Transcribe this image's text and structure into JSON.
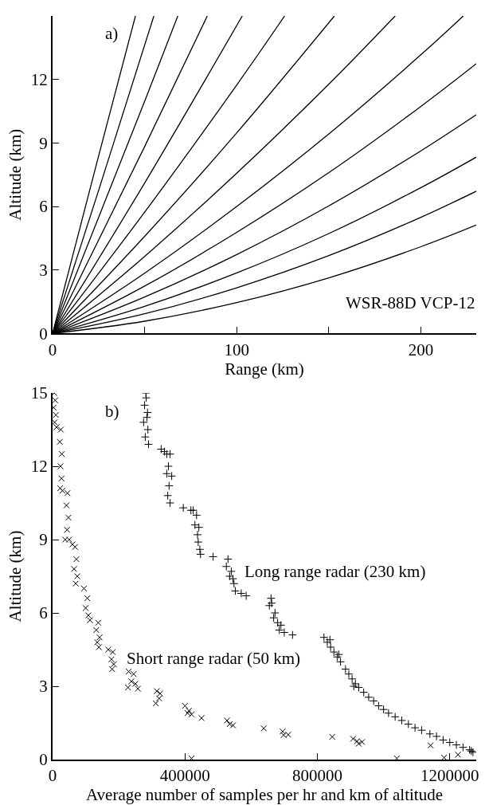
{
  "chart_data": [
    {
      "type": "line",
      "xlabel": "Range (km)",
      "ylabel": "Altitude (km)",
      "annotations": [
        "a)",
        "WSR-88D VCP-12"
      ],
      "xlim": [
        0,
        230
      ],
      "ylim": [
        0,
        15
      ],
      "xticks": [
        0,
        {
          "value": 50,
          "label": null
        },
        100,
        {
          "value": 150,
          "label": null
        },
        200
      ],
      "yticks": [
        0,
        3,
        6,
        9,
        12
      ],
      "legend": false,
      "marker": "none",
      "line_style": "solid",
      "series": [
        {
          "color": "#000000",
          "x": [
            0,
            50,
            100,
            150,
            200,
            230
          ],
          "values": [
            0,
            0.58,
            1.46,
            2.63,
            4.1,
            5.12
          ]
        },
        {
          "color": "#000000",
          "x": [
            0,
            50,
            100,
            150,
            200,
            230
          ],
          "values": [
            0,
            0.93,
            2.16,
            3.68,
            5.49,
            6.72
          ]
        },
        {
          "color": "#000000",
          "x": [
            0,
            50,
            100,
            150,
            200,
            230
          ],
          "values": [
            0,
            1.28,
            2.86,
            4.72,
            6.89,
            8.33
          ]
        },
        {
          "color": "#000000",
          "x": [
            0,
            50,
            100,
            150,
            200,
            230
          ],
          "values": [
            0,
            1.72,
            3.73,
            6.03,
            8.63,
            10.33
          ]
        },
        {
          "color": "#000000",
          "x": [
            0,
            50,
            100,
            150,
            200,
            230
          ],
          "values": [
            0,
            2.24,
            4.78,
            7.6,
            10.73,
            12.74
          ]
        },
        {
          "color": "#000000",
          "x": [
            0,
            50,
            100,
            150,
            200,
            223
          ],
          "values": [
            0,
            2.85,
            6.0,
            9.43,
            13.17,
            15
          ]
        },
        {
          "color": "#000000",
          "x": [
            0,
            50,
            100,
            150,
            186
          ],
          "values": [
            0,
            3.64,
            7.57,
            11.78,
            15
          ]
        },
        {
          "color": "#000000",
          "x": [
            0,
            50,
            100,
            153
          ],
          "values": [
            0,
            4.59,
            9.48,
            15
          ]
        },
        {
          "color": "#000000",
          "x": [
            0,
            50,
            100,
            126
          ],
          "values": [
            0,
            5.73,
            11.74,
            15
          ]
        },
        {
          "color": "#000000",
          "x": [
            0,
            50,
            103
          ],
          "values": [
            0,
            7.11,
            15
          ]
        },
        {
          "color": "#000000",
          "x": [
            0,
            50,
            84
          ],
          "values": [
            0,
            8.83,
            15
          ]
        },
        {
          "color": "#000000",
          "x": [
            0,
            50,
            68
          ],
          "values": [
            0,
            10.97,
            15
          ]
        },
        {
          "color": "#000000",
          "x": [
            0,
            25,
            55
          ],
          "values": [
            0,
            6.76,
            15
          ]
        },
        {
          "color": "#000000",
          "x": [
            0,
            25,
            45
          ],
          "values": [
            0,
            8.39,
            15
          ]
        }
      ]
    },
    {
      "type": "scatter",
      "xlabel": "Average number of samples per hr and km of altitude",
      "ylabel": "Altitude (km)",
      "annotations": [
        "b)"
      ],
      "xlim": [
        0,
        1280000
      ],
      "ylim": [
        0,
        15
      ],
      "xticks": [
        0,
        400000,
        800000,
        1200000
      ],
      "yticks": [
        0,
        3,
        6,
        9,
        12,
        15
      ],
      "legend": false,
      "series": [
        {
          "name": "Long range radar (230 km)",
          "color": "#000000",
          "marker": "cross",
          "x": [
            282000,
            278000,
            285000,
            275000,
            288000,
            280000,
            290000,
            283000,
            287000,
            328000,
            345000,
            355000,
            350000,
            345000,
            360000,
            352000,
            348000,
            355000,
            338000,
            395000,
            418000,
            425000,
            435000,
            430000,
            438000,
            440000,
            445000,
            447000,
            442000,
            485000,
            530000,
            525000,
            540000,
            535000,
            548000,
            552000,
            570000,
            585000,
            545000,
            660000,
            655000,
            672000,
            668000,
            680000,
            685000,
            700000,
            725000,
            662000,
            690000,
            820000,
            830000,
            840000,
            850000,
            860000,
            870000,
            885000,
            895000,
            905000,
            915000,
            925000,
            940000,
            955000,
            970000,
            985000,
            1000000,
            1015000,
            1035000,
            1055000,
            1075000,
            1095000,
            1115000,
            1140000,
            1160000,
            1180000,
            1200000,
            1220000,
            1240000,
            1260000,
            1270000,
            1265000,
            838000,
            865000,
            910000
          ],
          "values": [
            15,
            14.5,
            14,
            13.8,
            13.5,
            13.2,
            12.9,
            14.8,
            14.2,
            12.7,
            12.5,
            12.5,
            12.0,
            11.7,
            11.6,
            11.2,
            10.8,
            10.5,
            12.6,
            10.3,
            10.2,
            10.2,
            10.0,
            9.6,
            9.2,
            8.9,
            8.6,
            8.4,
            9.5,
            8.3,
            8.2,
            7.9,
            7.7,
            7.5,
            7.2,
            6.9,
            6.8,
            6.7,
            7.4,
            6.6,
            6.3,
            6.0,
            5.8,
            5.6,
            5.3,
            5.2,
            5.1,
            6.4,
            5.5,
            5.0,
            4.8,
            4.6,
            4.4,
            4.2,
            4.0,
            3.7,
            3.5,
            3.3,
            3.1,
            2.95,
            2.75,
            2.55,
            2.4,
            2.2,
            2.05,
            1.9,
            1.75,
            1.6,
            1.45,
            1.3,
            1.2,
            1.05,
            0.95,
            0.8,
            0.7,
            0.6,
            0.5,
            0.4,
            0.3,
            0.35,
            4.9,
            4.3,
            3.0
          ]
        },
        {
          "name": "Short range radar (50 km)",
          "color": "#000000",
          "marker": "x",
          "x": [
            5000,
            8000,
            3000,
            10000,
            6000,
            12000,
            25000,
            22000,
            28000,
            24000,
            27000,
            23000,
            30000,
            45000,
            42000,
            48000,
            44000,
            50000,
            38000,
            60000,
            68000,
            72000,
            65000,
            75000,
            70000,
            95000,
            105000,
            100000,
            108000,
            113000,
            138000,
            132000,
            142000,
            135000,
            140000,
            168000,
            182000,
            178000,
            185000,
            180000,
            230000,
            245000,
            238000,
            250000,
            228000,
            258000,
            315000,
            322000,
            312000,
            325000,
            400000,
            412000,
            420000,
            408000,
            450000,
            527000,
            535000,
            545000,
            638000,
            695000,
            698000,
            712000,
            845000,
            908000,
            920000,
            935000,
            925000,
            1142000,
            420000,
            1040000,
            1183000,
            1225000
          ],
          "values": [
            15,
            14.7,
            14.4,
            14.1,
            13.8,
            13.6,
            13.5,
            13.0,
            12.5,
            12.0,
            11.5,
            11.1,
            11.0,
            10.9,
            10.4,
            9.9,
            9.4,
            9.0,
            9.0,
            8.8,
            8.7,
            8.2,
            7.8,
            7.5,
            7.2,
            7.0,
            6.6,
            6.2,
            5.9,
            5.7,
            5.6,
            5.3,
            5.0,
            4.8,
            4.6,
            4.5,
            4.4,
            4.1,
            3.9,
            3.7,
            3.6,
            3.5,
            3.2,
            3.1,
            2.95,
            2.9,
            2.8,
            2.5,
            2.3,
            2.7,
            2.2,
            2.0,
            1.85,
            1.9,
            1.7,
            1.6,
            1.45,
            1.4,
            1.28,
            1.15,
            1.0,
            1.02,
            0.93,
            0.85,
            0.75,
            0.72,
            0.65,
            0.58,
            0.05,
            0.05,
            0.08,
            0.2
          ]
        }
      ]
    }
  ]
}
